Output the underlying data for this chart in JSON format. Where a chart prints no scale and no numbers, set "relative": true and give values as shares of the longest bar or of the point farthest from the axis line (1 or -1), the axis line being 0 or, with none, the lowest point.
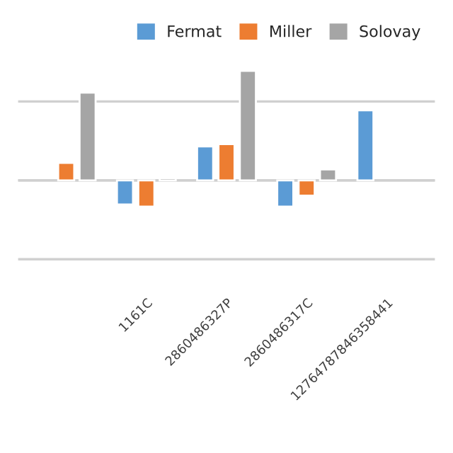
{
  "chart_data": {
    "type": "bar",
    "relative": true,
    "grid": "y",
    "legend": "top right",
    "categories": [
      null,
      "1161C",
      "2860486327P",
      "2860486317C",
      "12764787846358441"
    ],
    "series": [
      {
        "name": "Fermat",
        "color": "#5b9bd5",
        "values": [
          null,
          -0.22,
          0.31,
          -0.24,
          0.64
        ]
      },
      {
        "name": "Miller",
        "color": "#ed7d31",
        "values": [
          0.16,
          -0.24,
          0.33,
          -0.14,
          null
        ]
      },
      {
        "name": "Solovay",
        "color": "#a5a5a5",
        "values": [
          0.8,
          0.02,
          1.0,
          0.1,
          null
        ]
      }
    ]
  }
}
